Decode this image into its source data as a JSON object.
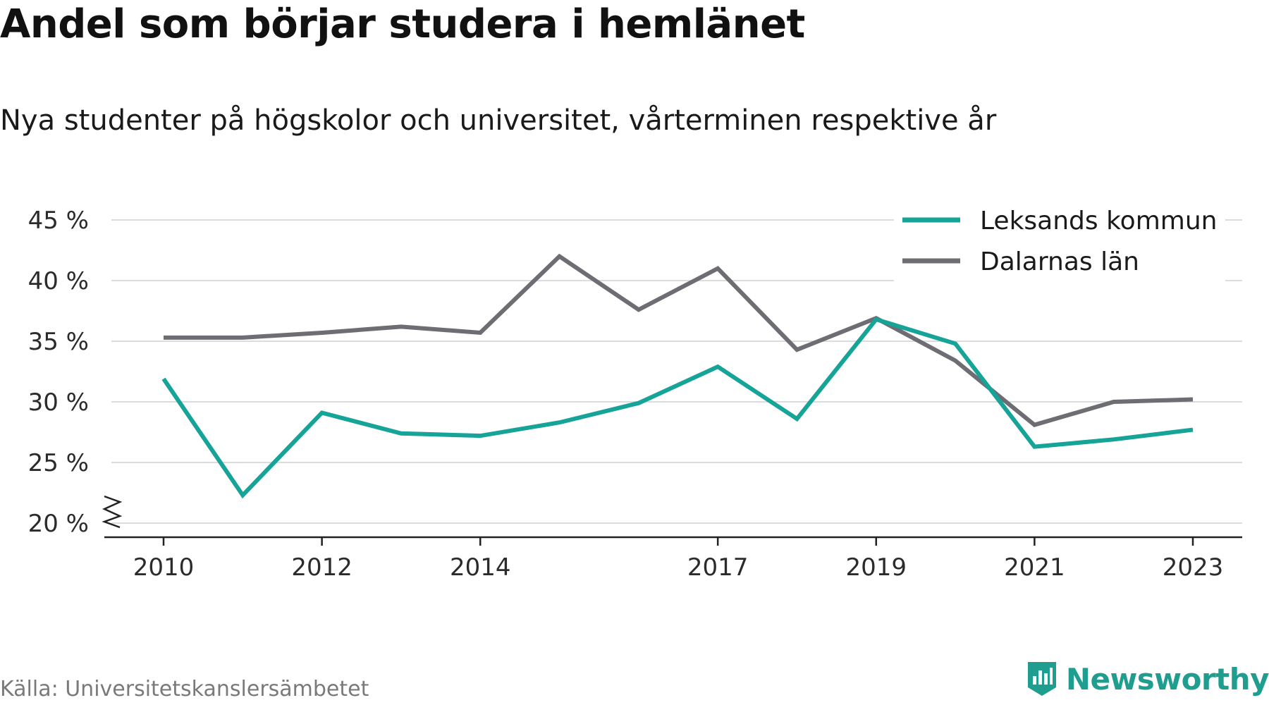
{
  "title": "Andel som börjar studera i hemlänet",
  "subtitle": "Nya studenter på högskolor och universitet, vårterminen respektive år",
  "source": "Källa: Universitetskanslersämbetet",
  "brand": {
    "name": "Newsworthy",
    "icon": "newsworthy-logo-icon",
    "color": "#1f9e8f"
  },
  "chart_data": {
    "type": "line",
    "x": [
      2010,
      2011,
      2012,
      2013,
      2014,
      2015,
      2016,
      2017,
      2018,
      2019,
      2020,
      2021,
      2022,
      2023
    ],
    "x_tick_labels": [
      "2010",
      "2012",
      "2014",
      "2017",
      "2019",
      "2021",
      "2023"
    ],
    "y_tick_labels": [
      "20 %",
      "25 %",
      "30 %",
      "35 %",
      "40 %",
      "45 %"
    ],
    "ylim": [
      20,
      45
    ],
    "y_axis_break": true,
    "grid": true,
    "legend_position": "top-right",
    "series": [
      {
        "name": "Leksands kommun",
        "color": "#16a398",
        "values": [
          31.9,
          22.3,
          29.1,
          27.4,
          27.2,
          28.3,
          29.9,
          32.9,
          28.6,
          36.8,
          34.8,
          26.3,
          26.9,
          27.7
        ]
      },
      {
        "name": "Dalarnas län",
        "color": "#6e6d73",
        "values": [
          35.3,
          35.3,
          35.7,
          36.2,
          35.7,
          42.0,
          37.6,
          41.0,
          34.3,
          36.9,
          33.4,
          28.1,
          30.0,
          30.2
        ]
      }
    ]
  }
}
